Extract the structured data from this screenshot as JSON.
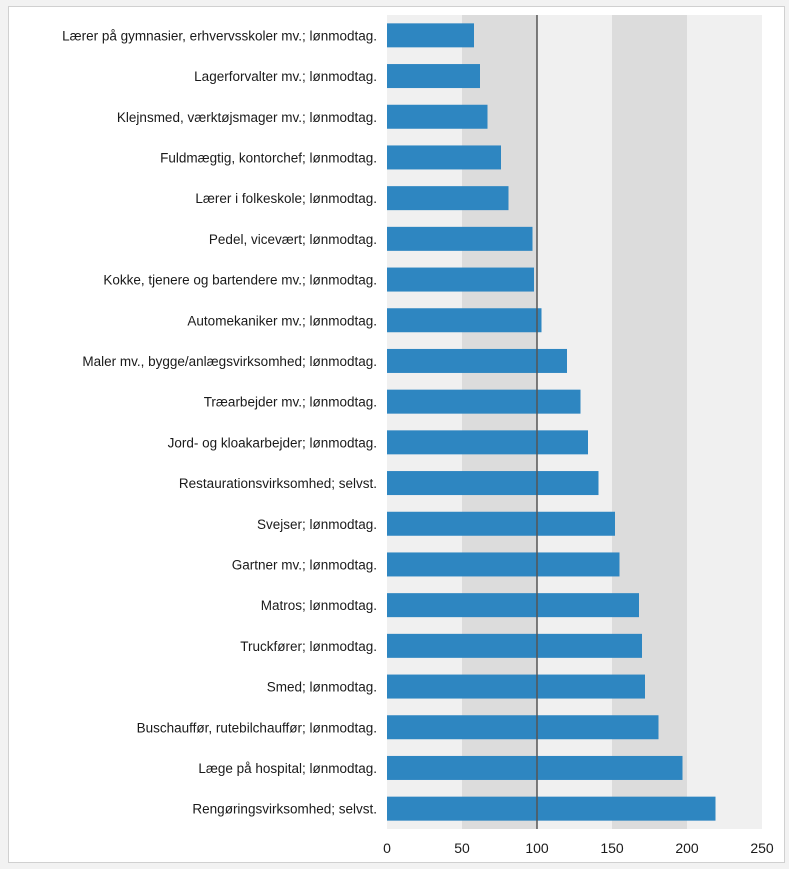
{
  "chart_data": {
    "type": "bar",
    "orientation": "horizontal",
    "categories": [
      "Lærer på gymnasier, erhvervsskoler mv.; lønmodtag.",
      "Lagerforvalter mv.; lønmodtag.",
      "Klejnsmed, værktøjsmager mv.; lønmodtag.",
      "Fuldmægtig, kontorchef; lønmodtag.",
      "Lærer i folkeskole; lønmodtag.",
      "Pedel, vicevært; lønmodtag.",
      "Kokke, tjenere og bartendere mv.; lønmodtag.",
      "Automekaniker mv.; lønmodtag.",
      "Maler mv., bygge/anlægsvirksomhed; lønmodtag.",
      "Træarbejder mv.; lønmodtag.",
      "Jord- og kloakarbejder; lønmodtag.",
      "Restaurationsvirksomhed; selvst.",
      "Svejser; lønmodtag.",
      "Gartner mv.; lønmodtag.",
      "Matros; lønmodtag.",
      "Truckfører; lønmodtag.",
      "Smed; lønmodtag.",
      "Buschauffør, rutebilchauffør; lønmodtag.",
      "Læge på hospital; lønmodtag.",
      "Rengøringsvirksomhed; selvst."
    ],
    "values": [
      58,
      62,
      67,
      76,
      81,
      97,
      98,
      103,
      120,
      129,
      134,
      141,
      152,
      155,
      168,
      170,
      172,
      181,
      197,
      219
    ],
    "xlim": [
      0,
      250
    ],
    "xticks": [
      "0",
      "50",
      "100",
      "150",
      "200",
      "250"
    ],
    "reference_line": 100,
    "title": "",
    "xlabel": "",
    "ylabel": "",
    "grid": "vertical",
    "legend": "none",
    "colors": {
      "bar": "#2e86c1",
      "band_light": "#f0f0f0",
      "band_dark": "#dcdcdc",
      "reference": "#555555"
    }
  }
}
